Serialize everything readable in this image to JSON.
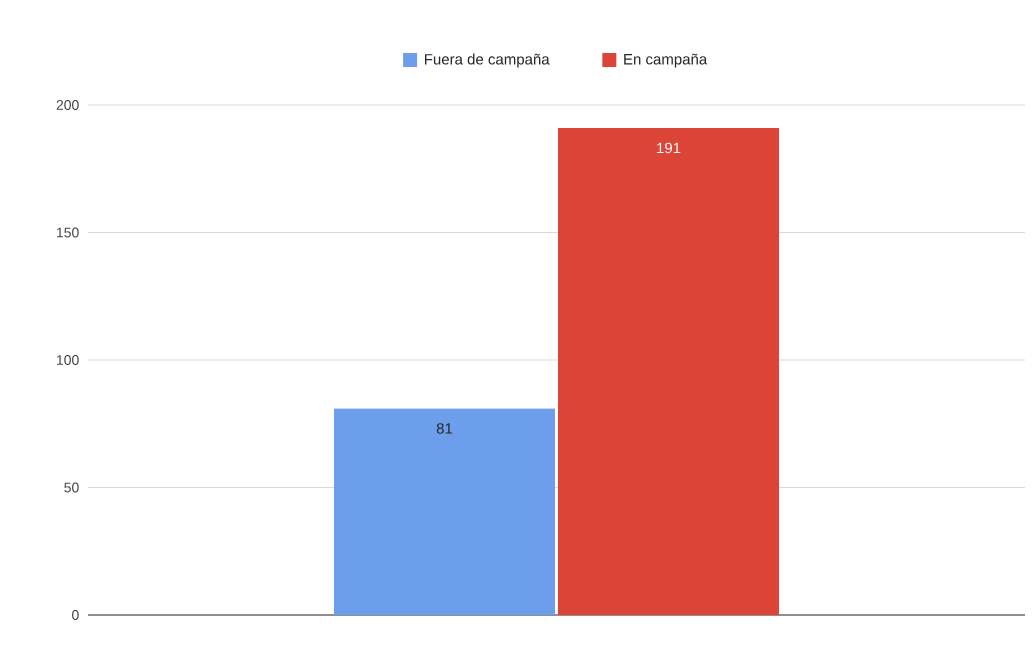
{
  "chart_data": {
    "type": "bar",
    "categories": [
      null
    ],
    "series": [
      {
        "name": "Fuera de campaña",
        "color": "#6d9eeb",
        "values": [
          81
        ]
      },
      {
        "name": "En campaña",
        "color": "#db4437",
        "values": [
          191
        ]
      }
    ],
    "ylim": [
      0,
      200
    ],
    "yticks": [
      0,
      50,
      100,
      150,
      200
    ],
    "grid": "y",
    "legend": "top",
    "data_labels": true
  }
}
